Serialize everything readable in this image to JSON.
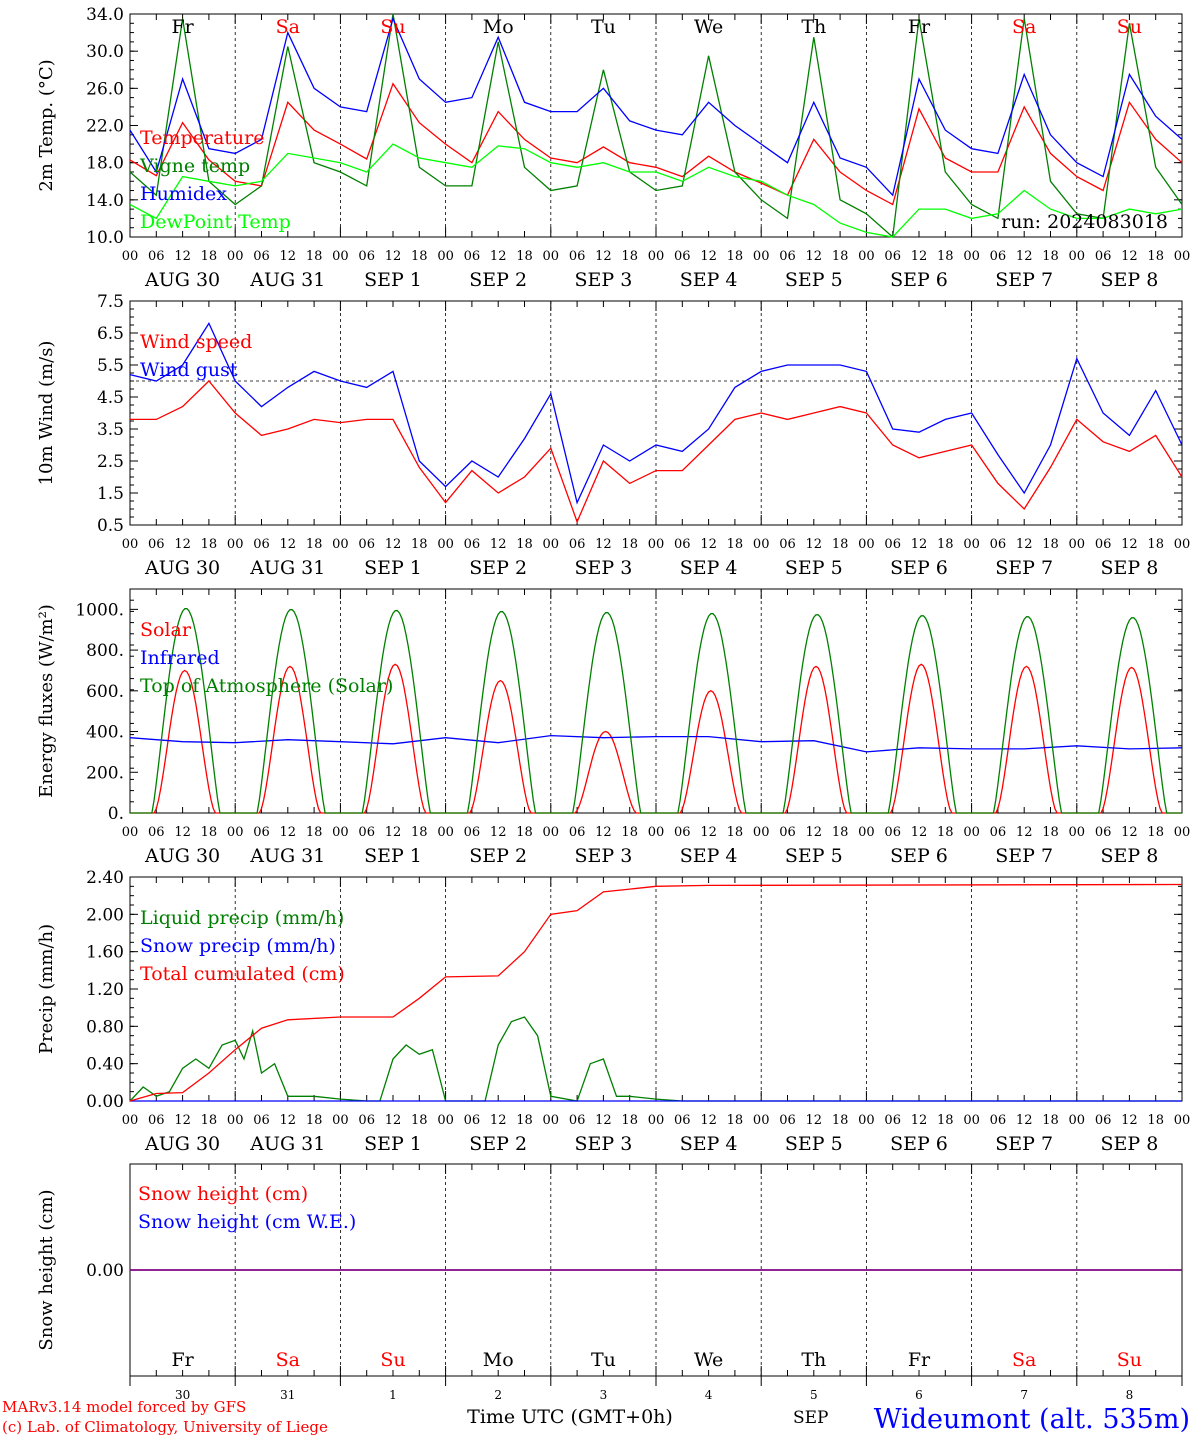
{
  "colors": {
    "red": "#ff0000",
    "green": "#008000",
    "blue": "#0000ff",
    "lime": "#00ff00",
    "purple": "#800080",
    "black": "#000000"
  },
  "run_label": "run: 2024083018",
  "day_names": [
    "Fr",
    "Sa",
    "Su",
    "Mo",
    "Tu",
    "We",
    "Th",
    "Fr",
    "Sa",
    "Su"
  ],
  "weekend_days": [
    1,
    2,
    8,
    9
  ],
  "date_labels": [
    "AUG 30",
    "AUG 31",
    "SEP  1",
    "SEP  2",
    "SEP  3",
    "SEP  4",
    "SEP  5",
    "SEP  6",
    "SEP  7",
    "SEP  8"
  ],
  "hour_ticks": [
    "00",
    "06",
    "12",
    "18"
  ],
  "bottom_day_numbers": [
    "30",
    "31",
    "1",
    "2",
    "3",
    "4",
    "5",
    "6",
    "7",
    "8"
  ],
  "bottom_month_label": "SEP",
  "xlabel": "Time UTC (GMT+0h)",
  "station_label": "Wideumont (alt. 535m)",
  "credits": [
    "MARv3.14 model forced by GFS",
    "(c) Lab. of Climatology, University of Liege"
  ],
  "chart_data": [
    {
      "id": "temperature",
      "type": "line",
      "ylabel": "2m Temp. (°C)",
      "ylim": [
        10.0,
        34.0
      ],
      "yticks": [
        "10.0",
        "14.0",
        "18.0",
        "22.0",
        "26.0",
        "30.0",
        "34.0"
      ],
      "x_hours": [
        0,
        6,
        12,
        18,
        24,
        30,
        36,
        42,
        48,
        54,
        60,
        66,
        72,
        78,
        84,
        90,
        96,
        102,
        108,
        114,
        120,
        126,
        132,
        138,
        144,
        150,
        156,
        162,
        168,
        174,
        180,
        186,
        192,
        198,
        204,
        210,
        216,
        222,
        228,
        234,
        240
      ],
      "series": [
        {
          "name": "Temperature",
          "color": "#ff0000",
          "values": [
            18.3,
            16.6,
            22.3,
            18.3,
            16.0,
            15.5,
            24.5,
            21.5,
            20.0,
            18.4,
            26.5,
            22.3,
            20.0,
            18.0,
            23.5,
            20.5,
            18.5,
            18.0,
            19.7,
            18.0,
            17.5,
            16.5,
            18.7,
            17.0,
            15.8,
            14.5,
            20.5,
            17.0,
            15.0,
            13.5,
            23.8,
            18.5,
            17.0,
            17.0,
            24.0,
            19.0,
            16.5,
            15.0,
            24.5,
            20.5,
            18.0
          ]
        },
        {
          "name": "Vigne temp",
          "color": "#008000",
          "values": [
            17.0,
            14.5,
            33.5,
            16.0,
            13.5,
            15.5,
            30.5,
            18.0,
            17.0,
            15.5,
            34.0,
            17.5,
            15.5,
            15.5,
            31.0,
            17.5,
            15.0,
            15.5,
            28.0,
            17.0,
            15.0,
            15.5,
            29.5,
            17.0,
            14.0,
            12.0,
            31.5,
            14.0,
            12.5,
            10.0,
            33.5,
            17.0,
            13.5,
            12.0,
            33.5,
            16.0,
            12.5,
            12.0,
            33.0,
            17.5,
            13.5
          ]
        },
        {
          "name": "Humidex",
          "color": "#0000ff",
          "values": [
            21.5,
            17.0,
            27.0,
            19.5,
            19.0,
            20.5,
            32.0,
            26.0,
            24.0,
            23.5,
            33.5,
            27.0,
            24.5,
            25.0,
            31.5,
            24.5,
            23.5,
            23.5,
            26.0,
            22.5,
            21.5,
            21.0,
            24.5,
            22.0,
            20.0,
            18.0,
            24.5,
            18.5,
            17.5,
            14.5,
            27.0,
            21.5,
            19.5,
            19.0,
            27.5,
            21.0,
            18.0,
            16.5,
            27.5,
            23.0,
            20.5
          ]
        },
        {
          "name": "DewPoint Temp",
          "color": "#00ff00",
          "values": [
            13.5,
            12.0,
            16.5,
            16.0,
            15.5,
            16.0,
            19.0,
            18.5,
            18.0,
            17.0,
            20.0,
            18.5,
            18.0,
            17.5,
            19.8,
            19.5,
            18.0,
            17.5,
            18.0,
            17.0,
            17.0,
            16.0,
            17.5,
            16.5,
            16.0,
            14.5,
            13.5,
            11.5,
            10.5,
            10.0,
            13.0,
            13.0,
            12.0,
            12.5,
            15.0,
            13.0,
            12.0,
            12.0,
            13.0,
            12.5,
            13.0
          ]
        }
      ]
    },
    {
      "id": "wind",
      "type": "line",
      "ylabel": "10m Wind (m/s)",
      "ylim": [
        0.5,
        7.5
      ],
      "yticks": [
        "0.5",
        "1.5",
        "2.5",
        "3.5",
        "4.5",
        "5.5",
        "6.5",
        "7.5"
      ],
      "reference_line": 5.0,
      "x_hours": [
        0,
        6,
        12,
        18,
        24,
        30,
        36,
        42,
        48,
        54,
        60,
        66,
        72,
        78,
        84,
        90,
        96,
        102,
        108,
        114,
        120,
        126,
        132,
        138,
        144,
        150,
        156,
        162,
        168,
        174,
        180,
        186,
        192,
        198,
        204,
        210,
        216,
        222,
        228,
        234,
        240
      ],
      "series": [
        {
          "name": "Wind speed",
          "color": "#ff0000",
          "values": [
            3.8,
            3.8,
            4.2,
            5.0,
            4.0,
            3.3,
            3.5,
            3.8,
            3.7,
            3.8,
            3.8,
            2.3,
            1.2,
            2.2,
            1.5,
            2.0,
            2.9,
            0.6,
            2.5,
            1.8,
            2.2,
            2.2,
            3.0,
            3.8,
            4.0,
            3.8,
            4.0,
            4.2,
            4.0,
            3.0,
            2.6,
            2.8,
            3.0,
            1.8,
            1.0,
            2.3,
            3.8,
            3.1,
            2.8,
            3.3,
            2.0
          ]
        },
        {
          "name": "Wind gust",
          "color": "#0000ff",
          "values": [
            5.2,
            5.0,
            5.5,
            6.8,
            5.0,
            4.2,
            4.8,
            5.3,
            5.0,
            4.8,
            5.3,
            2.5,
            1.7,
            2.5,
            2.0,
            3.2,
            4.6,
            1.2,
            3.0,
            2.5,
            3.0,
            2.8,
            3.5,
            4.8,
            5.3,
            5.5,
            5.5,
            5.5,
            5.3,
            3.5,
            3.4,
            3.8,
            4.0,
            2.7,
            1.5,
            3.0,
            5.7,
            4.0,
            3.3,
            4.7,
            3.0
          ]
        }
      ]
    },
    {
      "id": "energy",
      "type": "line",
      "ylabel": "Energy fluxes (W/m²)",
      "ylim": [
        0,
        1100
      ],
      "yticks": [
        "0.",
        "200.",
        "400.",
        "600.",
        "800.",
        "1000."
      ],
      "series": [
        {
          "name": "Solar",
          "color": "#ff0000",
          "daily_peaks": [
            700,
            720,
            730,
            650,
            400,
            600,
            720,
            730,
            720,
            715
          ]
        },
        {
          "name": "Infrared",
          "color": "#0000ff",
          "x_hours": [
            0,
            12,
            24,
            36,
            48,
            60,
            72,
            84,
            96,
            108,
            120,
            132,
            144,
            156,
            168,
            180,
            192,
            204,
            216,
            228,
            240
          ],
          "values": [
            370,
            350,
            345,
            360,
            350,
            340,
            370,
            345,
            380,
            370,
            375,
            375,
            350,
            355,
            300,
            320,
            315,
            315,
            330,
            315,
            320
          ]
        },
        {
          "name": "Top of Atmosphere (Solar)",
          "color": "#008000",
          "daily_peaks": [
            1005,
            1000,
            995,
            990,
            985,
            980,
            975,
            970,
            965,
            960
          ]
        }
      ]
    },
    {
      "id": "precip",
      "type": "line",
      "ylabel": "Precip (mm/h)",
      "ylim": [
        0.0,
        2.4
      ],
      "yticks": [
        "0.00",
        "0.40",
        "0.80",
        "1.20",
        "1.60",
        "2.00",
        "2.40"
      ],
      "series": [
        {
          "name": "Liquid precip (mm/h)",
          "color": "#008000",
          "x_hours": [
            0,
            3,
            6,
            9,
            12,
            15,
            18,
            21,
            24,
            26,
            28,
            30,
            33,
            36,
            42,
            48,
            54,
            57,
            60,
            63,
            66,
            69,
            72,
            78,
            81,
            84,
            87,
            90,
            93,
            96,
            102,
            105,
            108,
            111,
            114,
            120,
            126,
            132,
            240
          ],
          "values": [
            0,
            0.15,
            0.05,
            0.1,
            0.35,
            0.45,
            0.35,
            0.6,
            0.65,
            0.45,
            0.75,
            0.3,
            0.4,
            0.05,
            0.05,
            0.02,
            0,
            0,
            0.45,
            0.6,
            0.5,
            0.55,
            0,
            0,
            0,
            0.6,
            0.85,
            0.9,
            0.7,
            0.05,
            0,
            0.4,
            0.45,
            0.05,
            0.05,
            0.02,
            0,
            0,
            0
          ]
        },
        {
          "name": "Snow precip (mm/h)",
          "color": "#0000ff",
          "x_hours": [
            0,
            240
          ],
          "values": [
            0,
            0
          ]
        },
        {
          "name": "Total cumulated (cm)",
          "color": "#ff0000",
          "x_hours": [
            0,
            6,
            12,
            18,
            24,
            30,
            36,
            48,
            60,
            66,
            72,
            84,
            90,
            96,
            102,
            108,
            114,
            120,
            132,
            240
          ],
          "values": [
            0,
            0.08,
            0.09,
            0.3,
            0.55,
            0.78,
            0.87,
            0.9,
            0.9,
            1.1,
            1.33,
            1.34,
            1.6,
            2.0,
            2.04,
            2.24,
            2.27,
            2.3,
            2.31,
            2.32
          ]
        }
      ]
    },
    {
      "id": "snow",
      "type": "line",
      "ylabel": "Snow height (cm)",
      "ylim": [
        -1,
        1
      ],
      "yticks": [
        "0.00"
      ],
      "series": [
        {
          "name": "Snow height (cm)",
          "color": "#ff0000",
          "x_hours": [
            0,
            240
          ],
          "values": [
            0,
            0
          ]
        },
        {
          "name": "Snow height (cm W.E.)",
          "color": "#0000ff",
          "x_hours": [
            0,
            240
          ],
          "values": [
            0,
            0
          ]
        }
      ]
    }
  ]
}
